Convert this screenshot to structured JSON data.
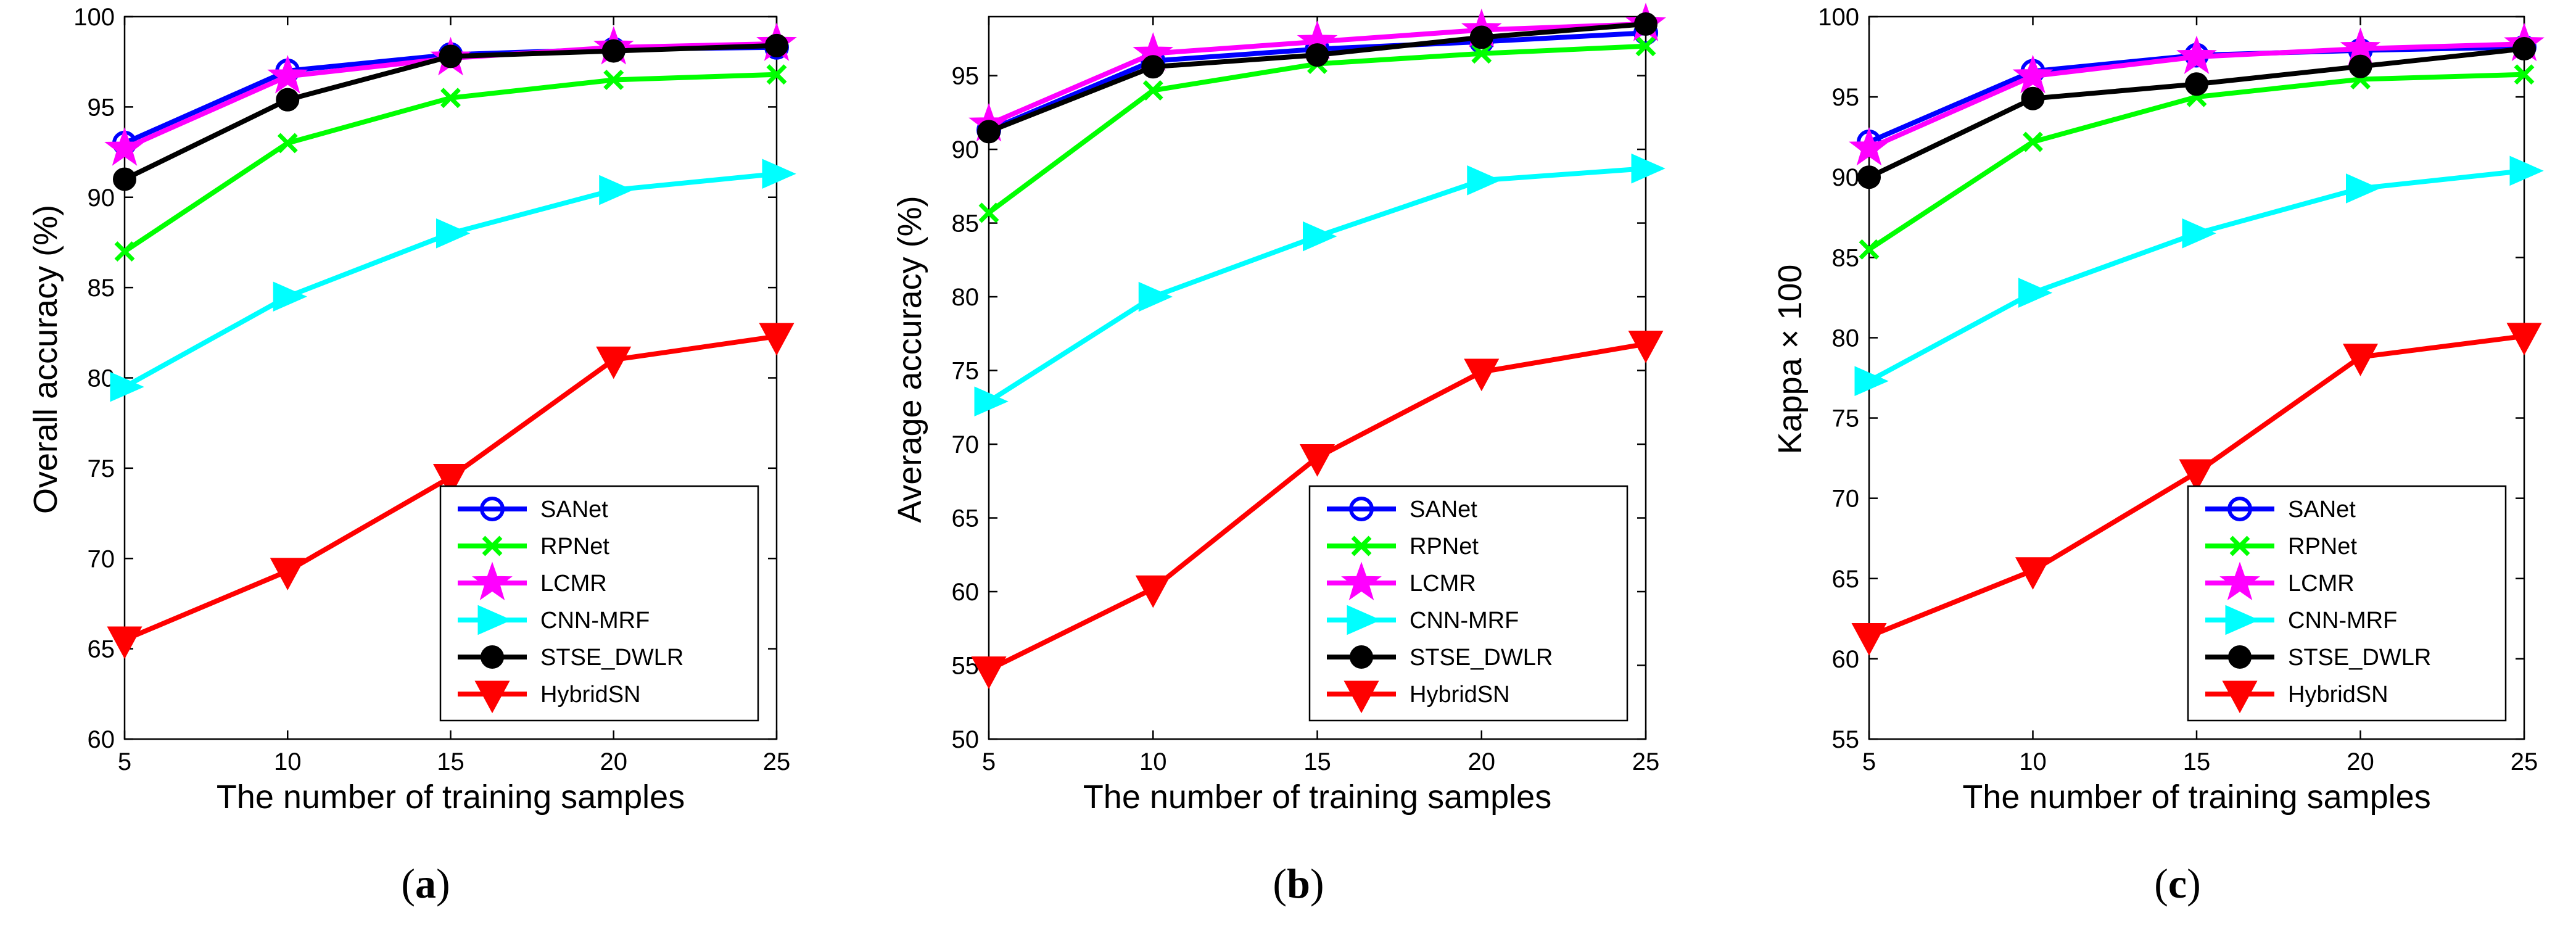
{
  "chart_data": [
    {
      "type": "line",
      "caption": "(a)",
      "caption_parts": [
        "(",
        "a",
        ")"
      ],
      "xlabel": "The number of training samples",
      "ylabel": "Overall accuracy (%)",
      "x": [
        5,
        10,
        15,
        20,
        25
      ],
      "xlim": [
        5,
        25
      ],
      "ylim": [
        60,
        100
      ],
      "xticks": [
        "5",
        "10",
        "15",
        "20",
        "25"
      ],
      "yticks": [
        "60",
        "65",
        "70",
        "75",
        "80",
        "85",
        "90",
        "95",
        "100"
      ],
      "legend_position": "bottom-right",
      "series": [
        {
          "name": "SANet",
          "color": "#0000ff",
          "marker": "circle",
          "values": [
            93.0,
            97.0,
            97.9,
            98.2,
            98.3
          ]
        },
        {
          "name": "RPNet",
          "color": "#00ff00",
          "marker": "x",
          "values": [
            87.0,
            93.0,
            95.5,
            96.5,
            96.8
          ]
        },
        {
          "name": "LCMR",
          "color": "#ff00ff",
          "marker": "star",
          "values": [
            92.7,
            96.7,
            97.7,
            98.3,
            98.5
          ]
        },
        {
          "name": "CNN-MRF",
          "color": "#00ffff",
          "marker": "triangle-right",
          "values": [
            79.5,
            84.5,
            88.0,
            90.4,
            91.3
          ]
        },
        {
          "name": "STSE_DWLR",
          "color": "#000000",
          "marker": "dot",
          "values": [
            91.0,
            95.4,
            97.8,
            98.1,
            98.4
          ]
        },
        {
          "name": "HybridSN",
          "color": "#ff0000",
          "marker": "triangle-down",
          "values": [
            65.5,
            69.3,
            74.5,
            81.0,
            82.3
          ]
        }
      ]
    },
    {
      "type": "line",
      "caption": "(b)",
      "caption_parts": [
        "(",
        "b",
        ")"
      ],
      "xlabel": "The number of training samples",
      "ylabel": "Average accuracy (%)",
      "x": [
        5,
        10,
        15,
        20,
        25
      ],
      "xlim": [
        5,
        25
      ],
      "ylim": [
        50,
        99
      ],
      "xticks": [
        "5",
        "10",
        "15",
        "20",
        "25"
      ],
      "yticks": [
        "50",
        "55",
        "60",
        "65",
        "70",
        "75",
        "80",
        "85",
        "90",
        "95"
      ],
      "legend_position": "bottom-right",
      "series": [
        {
          "name": "SANet",
          "color": "#0000ff",
          "marker": "circle",
          "values": [
            91.3,
            96.0,
            96.8,
            97.3,
            97.9
          ]
        },
        {
          "name": "RPNet",
          "color": "#00ff00",
          "marker": "x",
          "values": [
            85.7,
            94.0,
            95.8,
            96.5,
            97.0
          ]
        },
        {
          "name": "LCMR",
          "color": "#ff00ff",
          "marker": "star",
          "values": [
            91.7,
            96.5,
            97.3,
            98.1,
            98.5
          ]
        },
        {
          "name": "CNN-MRF",
          "color": "#00ffff",
          "marker": "triangle-right",
          "values": [
            72.9,
            80.0,
            84.1,
            87.9,
            88.7
          ]
        },
        {
          "name": "STSE_DWLR",
          "color": "#000000",
          "marker": "dot",
          "values": [
            91.2,
            95.6,
            96.4,
            97.6,
            98.5
          ]
        },
        {
          "name": "HybridSN",
          "color": "#ff0000",
          "marker": "triangle-down",
          "values": [
            54.7,
            60.2,
            69.1,
            74.9,
            76.8
          ]
        }
      ]
    },
    {
      "type": "line",
      "caption": "(c)",
      "caption_parts": [
        "(",
        "c",
        ")"
      ],
      "xlabel": "The number of training samples",
      "ylabel": "Kappa × 100",
      "x": [
        5,
        10,
        15,
        20,
        25
      ],
      "xlim": [
        5,
        25
      ],
      "ylim": [
        55,
        100
      ],
      "xticks": [
        "5",
        "10",
        "15",
        "20",
        "25"
      ],
      "yticks": [
        "55",
        "60",
        "65",
        "70",
        "75",
        "80",
        "85",
        "90",
        "95",
        "100"
      ],
      "legend_position": "bottom-right",
      "series": [
        {
          "name": "SANet",
          "color": "#0000ff",
          "marker": "circle",
          "values": [
            92.2,
            96.6,
            97.6,
            97.9,
            98.1
          ]
        },
        {
          "name": "RPNet",
          "color": "#00ff00",
          "marker": "x",
          "values": [
            85.5,
            92.2,
            95.0,
            96.1,
            96.4
          ]
        },
        {
          "name": "LCMR",
          "color": "#ff00ff",
          "marker": "star",
          "values": [
            91.8,
            96.3,
            97.5,
            98.0,
            98.3
          ]
        },
        {
          "name": "CNN-MRF",
          "color": "#00ffff",
          "marker": "triangle-right",
          "values": [
            77.3,
            82.8,
            86.5,
            89.3,
            90.4
          ]
        },
        {
          "name": "STSE_DWLR",
          "color": "#000000",
          "marker": "dot",
          "values": [
            90.0,
            94.9,
            95.8,
            96.9,
            98.0
          ]
        },
        {
          "name": "HybridSN",
          "color": "#ff0000",
          "marker": "triangle-down",
          "values": [
            61.4,
            65.5,
            71.6,
            78.8,
            80.1
          ]
        }
      ]
    }
  ]
}
